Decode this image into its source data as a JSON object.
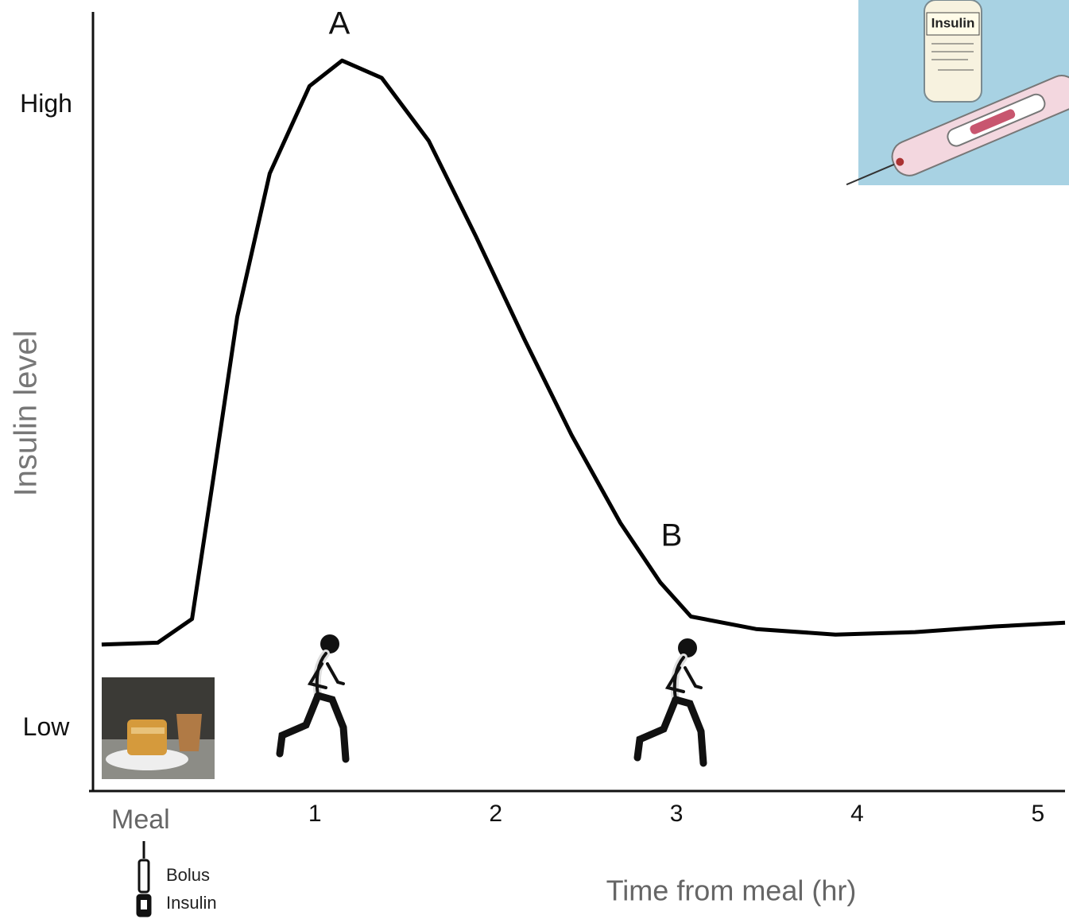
{
  "chart_data": {
    "type": "line",
    "y_label": "Insulin level",
    "x_label": "Time  from meal (hr)",
    "xlim": [
      -0.25,
      5.15
    ],
    "ylim": [
      -0.1,
      1.15
    ],
    "xticks": [
      {
        "value": 0,
        "label": "Meal"
      },
      1,
      2,
      3,
      4,
      5
    ],
    "yticks": [
      {
        "value": 0,
        "label": "Low"
      },
      {
        "value": 1,
        "label": "High"
      }
    ],
    "series": [
      {
        "color": "#000000",
        "x": [
          -0.18,
          0.13,
          0.32,
          0.44,
          0.57,
          0.75,
          0.97,
          1.15,
          1.37,
          1.63,
          1.89,
          2.16,
          2.42,
          2.69,
          2.91,
          3.08,
          3.44,
          3.88,
          4.32,
          4.76,
          5.15
        ],
        "values": [
          0.135,
          0.138,
          0.176,
          0.406,
          0.661,
          0.891,
          1.031,
          1.072,
          1.044,
          0.943,
          0.79,
          0.624,
          0.471,
          0.33,
          0.235,
          0.18,
          0.16,
          0.151,
          0.155,
          0.164,
          0.17
        ]
      }
    ],
    "annotations": [
      "A",
      "B",
      "Bolus",
      "Insulin"
    ],
    "inset_label": "Insulin"
  }
}
